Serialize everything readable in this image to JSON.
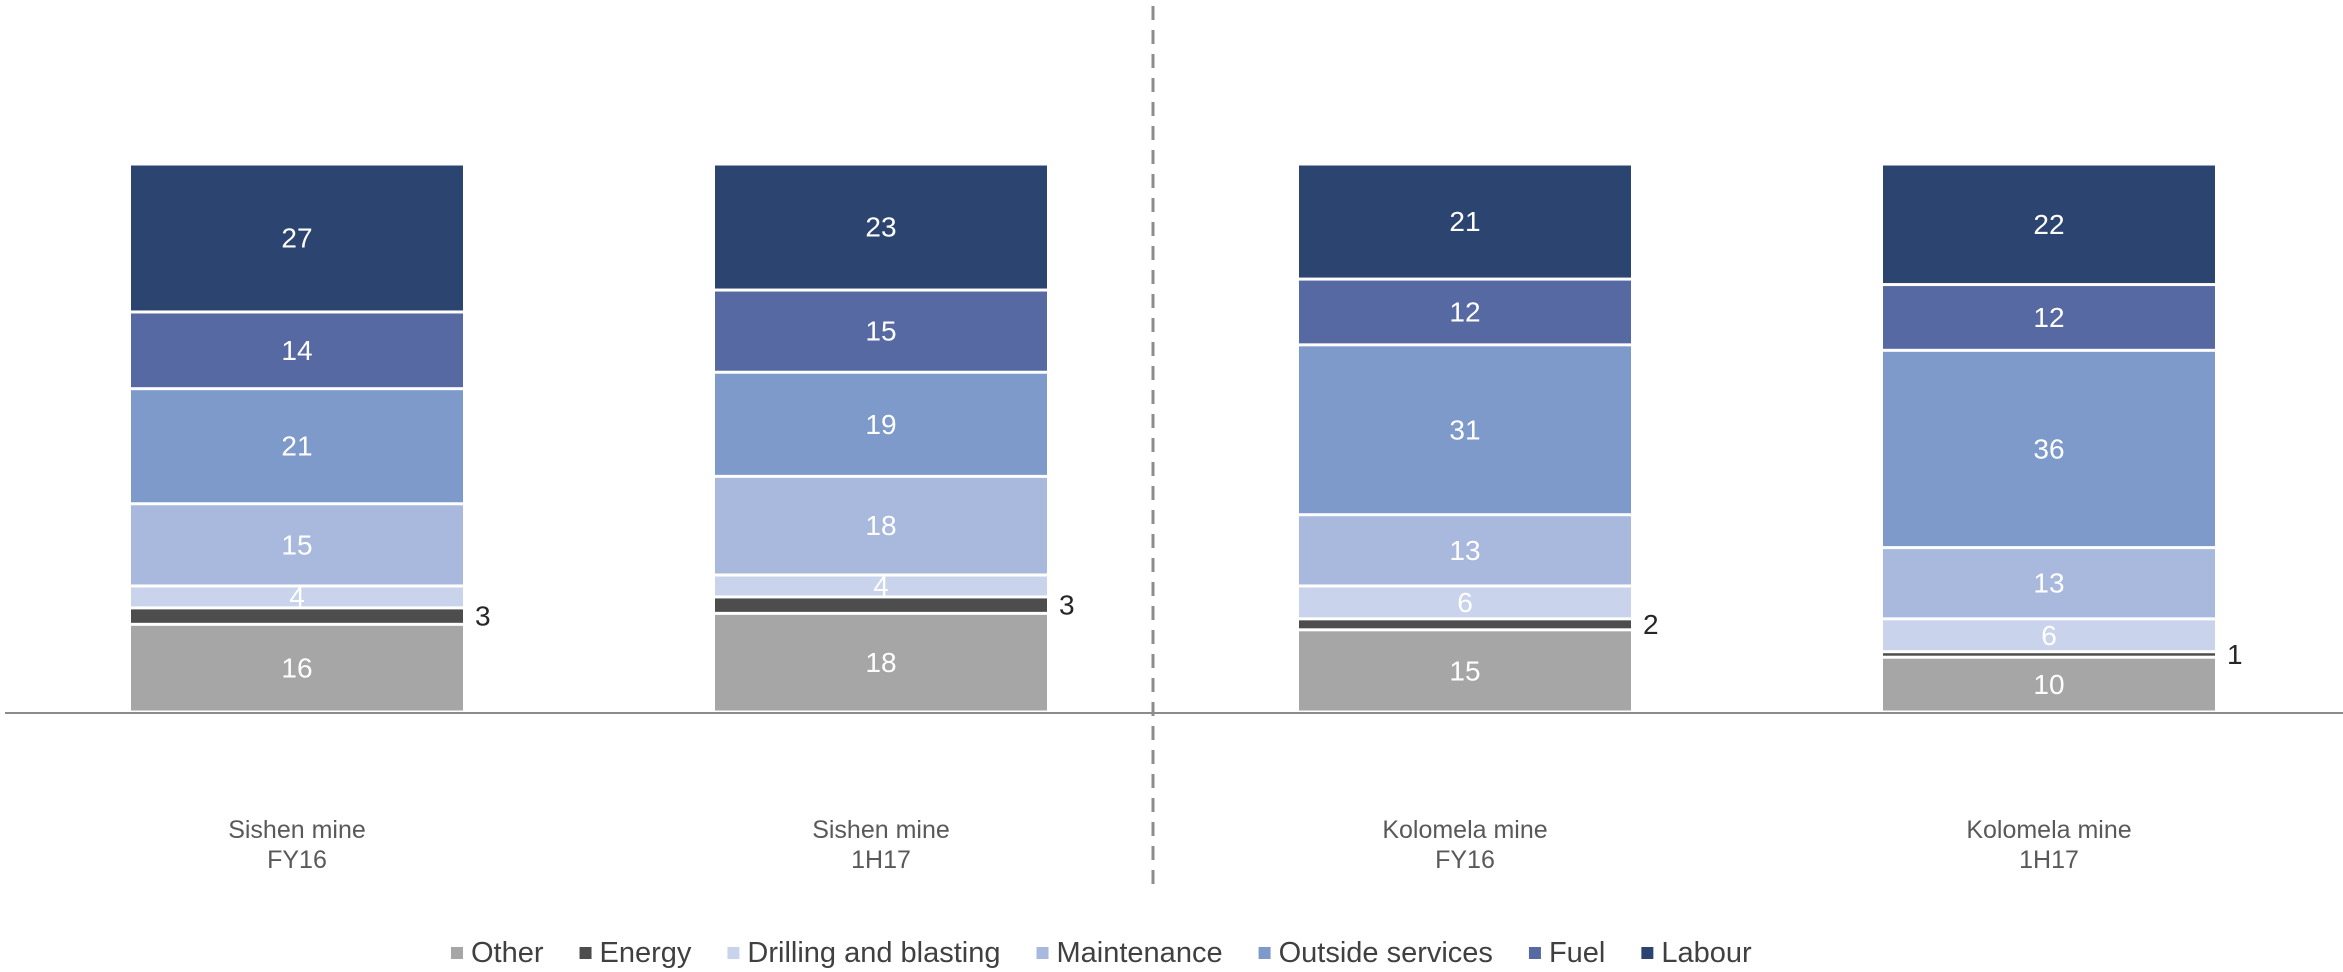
{
  "chart_data": {
    "type": "bar",
    "stacked": true,
    "normalized_percent": true,
    "categories": [
      [
        "Sishen mine",
        "FY16"
      ],
      [
        "Sishen mine",
        "1H17"
      ],
      [
        "Kolomela mine",
        "FY16"
      ],
      [
        "Kolomela mine",
        "1H17"
      ]
    ],
    "series": [
      {
        "name": "Other",
        "color": "#a6a6a6",
        "values": [
          16,
          18,
          15,
          10
        ]
      },
      {
        "name": "Energy",
        "color": "#4d4d4d",
        "values": [
          3,
          3,
          2,
          1
        ]
      },
      {
        "name": "Drilling and blasting",
        "color": "#c9d4ec",
        "values": [
          4,
          4,
          6,
          6
        ]
      },
      {
        "name": "Maintenance",
        "color": "#a8b9dd",
        "values": [
          15,
          18,
          13,
          13
        ]
      },
      {
        "name": "Outside services",
        "color": "#7d9acb",
        "values": [
          21,
          19,
          31,
          36
        ]
      },
      {
        "name": "Fuel",
        "color": "#5669a3",
        "values": [
          14,
          15,
          12,
          12
        ]
      },
      {
        "name": "Labour",
        "color": "#2c4570",
        "values": [
          27,
          23,
          21,
          22
        ]
      }
    ],
    "label_colors": {
      "Other": "#ffffff",
      "Energy": "#262626",
      "Drilling and blasting": "#ffffff",
      "Maintenance": "#ffffff",
      "Outside services": "#ffffff",
      "Fuel": "#ffffff",
      "Labour": "#ffffff"
    },
    "external_labels": [
      "Energy"
    ],
    "divider": "dashed vertical line between Sishen and Kolomela groups",
    "legend_position": "bottom",
    "grid": false,
    "title": "",
    "xlabel": "",
    "ylabel": ""
  }
}
